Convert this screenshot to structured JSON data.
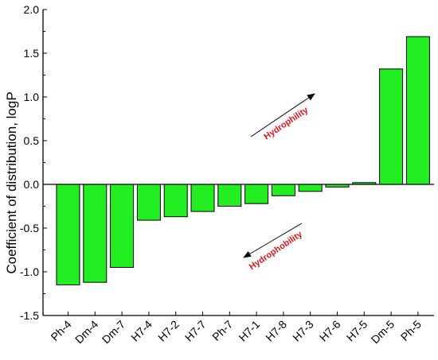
{
  "chart_data": {
    "type": "bar",
    "title": "",
    "xlabel": "",
    "ylabel": "Coefficient of distribution, logP",
    "categories": [
      "Ph-4",
      "Dm-4",
      "Dm-7",
      "H7-4",
      "H7-2",
      "H7-7",
      "Ph-7",
      "H7-1",
      "H7-8",
      "H7-3",
      "H7-6",
      "H7-5",
      "Dm-5",
      "Ph-5"
    ],
    "values": [
      -1.15,
      -1.12,
      -0.95,
      -0.41,
      -0.37,
      -0.31,
      -0.25,
      -0.22,
      -0.13,
      -0.08,
      -0.03,
      0.02,
      1.32,
      1.69
    ],
    "ylim": [
      -1.5,
      2.0
    ],
    "yticks": [
      -1.5,
      -1.0,
      -0.5,
      0.0,
      0.5,
      1.0,
      1.5,
      2.0
    ],
    "ytick_labels": [
      "-1.5",
      "-1.0",
      "-0.5",
      "0.0",
      "0.5",
      "1.0",
      "1.5",
      "2.0"
    ],
    "grid": false,
    "legend": "none",
    "annotations": [
      {
        "text": "Hydrophility",
        "direction": "up"
      },
      {
        "text": "Hydrophobility",
        "direction": "down"
      }
    ],
    "colors": {
      "bar_fill": "#22ee22",
      "bar_stroke": "#000000",
      "annotation": "#e8141e",
      "axis": "#000000"
    }
  }
}
